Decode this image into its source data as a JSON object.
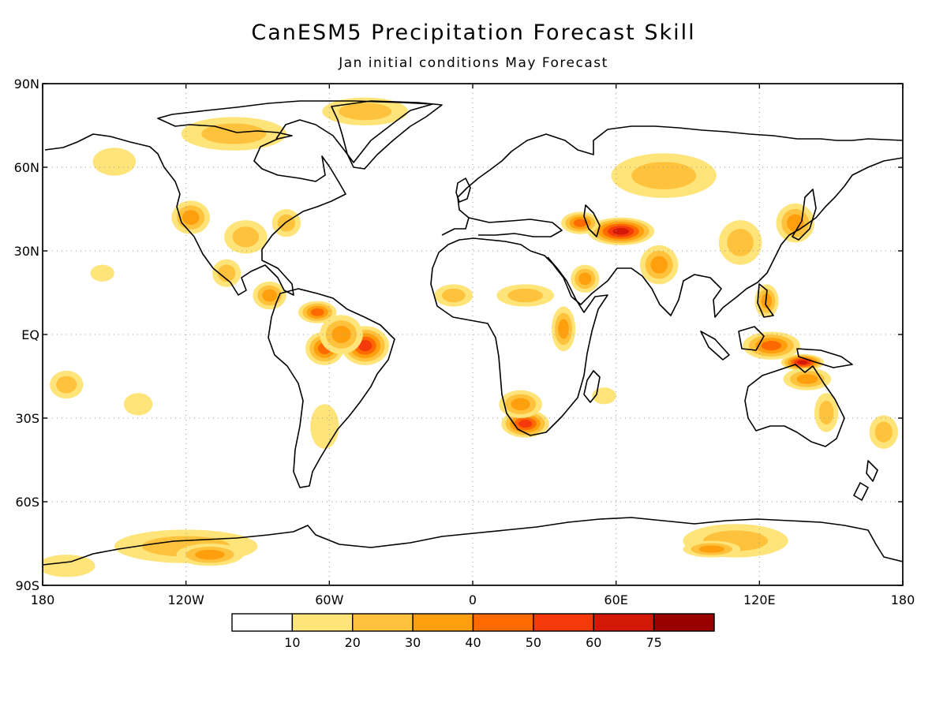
{
  "title": "CanESM5 Precipitation Forecast Skill",
  "subtitle": "Jan initial conditions   May Forecast",
  "map": {
    "lon_range": [
      -180,
      180
    ],
    "lat_range": [
      -90,
      90
    ],
    "grid": true,
    "lon_ticks": [
      {
        "value": -180,
        "label": "180"
      },
      {
        "value": -120,
        "label": "120W"
      },
      {
        "value": -60,
        "label": "60W"
      },
      {
        "value": 0,
        "label": "0"
      },
      {
        "value": 60,
        "label": "60E"
      },
      {
        "value": 120,
        "label": "120E"
      },
      {
        "value": 180,
        "label": "180"
      }
    ],
    "lat_ticks": [
      {
        "value": 90,
        "label": "90N"
      },
      {
        "value": 60,
        "label": "60N"
      },
      {
        "value": 30,
        "label": "30N"
      },
      {
        "value": 0,
        "label": "EQ"
      },
      {
        "value": -30,
        "label": "30S"
      },
      {
        "value": -60,
        "label": "60S"
      },
      {
        "value": -90,
        "label": "90S"
      }
    ]
  },
  "colorbar": {
    "colors": [
      "#ffffff",
      "#ffe47a",
      "#ffc23c",
      "#ff9f0e",
      "#ff6a00",
      "#f43a0b",
      "#d41808",
      "#9a0000"
    ],
    "labels": [
      "10",
      "20",
      "30",
      "40",
      "50",
      "60",
      "75"
    ]
  },
  "skill_regions": [
    {
      "name": "eastern-brazil",
      "lon": -45,
      "lat": -4,
      "rx": 10,
      "ry": 7,
      "level": 5
    },
    {
      "name": "amazon-west",
      "lon": -62,
      "lat": -5,
      "rx": 8,
      "ry": 6,
      "level": 4
    },
    {
      "name": "amazon-central",
      "lon": -55,
      "lat": 0,
      "rx": 9,
      "ry": 7,
      "level": 3
    },
    {
      "name": "northern-south-america",
      "lon": -65,
      "lat": 8,
      "rx": 8,
      "ry": 4,
      "level": 4
    },
    {
      "name": "central-america",
      "lon": -85,
      "lat": 14,
      "rx": 7,
      "ry": 5,
      "level": 3
    },
    {
      "name": "mexico",
      "lon": -103,
      "lat": 22,
      "rx": 6,
      "ry": 5,
      "level": 2
    },
    {
      "name": "western-usa",
      "lon": -118,
      "lat": 42,
      "rx": 8,
      "ry": 6,
      "level": 3
    },
    {
      "name": "central-usa",
      "lon": -95,
      "lat": 35,
      "rx": 9,
      "ry": 6,
      "level": 2
    },
    {
      "name": "eastern-usa",
      "lon": -78,
      "lat": 40,
      "rx": 6,
      "ry": 5,
      "level": 2
    },
    {
      "name": "canada-arctic",
      "lon": -100,
      "lat": 72,
      "rx": 22,
      "ry": 6,
      "level": 2
    },
    {
      "name": "greenland-north",
      "lon": -45,
      "lat": 80,
      "rx": 18,
      "ry": 5,
      "level": 2
    },
    {
      "name": "alaska",
      "lon": -150,
      "lat": 62,
      "rx": 9,
      "ry": 5,
      "level": 1
    },
    {
      "name": "southern-africa",
      "lon": 22,
      "lat": -32,
      "rx": 10,
      "ry": 5,
      "level": 5
    },
    {
      "name": "southern-africa-north",
      "lon": 20,
      "lat": -25,
      "rx": 9,
      "ry": 5,
      "level": 3
    },
    {
      "name": "east-africa",
      "lon": 38,
      "lat": 2,
      "rx": 5,
      "ry": 8,
      "level": 3
    },
    {
      "name": "sahel-west",
      "lon": -8,
      "lat": 14,
      "rx": 8,
      "ry": 4,
      "level": 2
    },
    {
      "name": "sahel-east",
      "lon": 22,
      "lat": 14,
      "rx": 12,
      "ry": 4,
      "level": 2
    },
    {
      "name": "arabia",
      "lon": 47,
      "lat": 20,
      "rx": 6,
      "ry": 5,
      "level": 3
    },
    {
      "name": "central-asia",
      "lon": 62,
      "lat": 37,
      "rx": 14,
      "ry": 5,
      "level": 6
    },
    {
      "name": "caspian",
      "lon": 45,
      "lat": 40,
      "rx": 8,
      "ry": 4,
      "level": 4
    },
    {
      "name": "siberia",
      "lon": 80,
      "lat": 57,
      "rx": 22,
      "ry": 8,
      "level": 2
    },
    {
      "name": "india",
      "lon": 78,
      "lat": 25,
      "rx": 8,
      "ry": 7,
      "level": 3
    },
    {
      "name": "china-east",
      "lon": 112,
      "lat": 33,
      "rx": 9,
      "ry": 8,
      "level": 2
    },
    {
      "name": "japan-korea",
      "lon": 135,
      "lat": 40,
      "rx": 8,
      "ry": 7,
      "level": 3
    },
    {
      "name": "philippines",
      "lon": 123,
      "lat": 12,
      "rx": 5,
      "ry": 6,
      "level": 3
    },
    {
      "name": "maritime-continent",
      "lon": 125,
      "lat": -4,
      "rx": 12,
      "ry": 5,
      "level": 4
    },
    {
      "name": "new-guinea-timor",
      "lon": 138,
      "lat": -10,
      "rx": 9,
      "ry": 3,
      "level": 6
    },
    {
      "name": "northern-australia",
      "lon": 140,
      "lat": -16,
      "rx": 10,
      "ry": 4,
      "level": 3
    },
    {
      "name": "eastern-australia",
      "lon": 148,
      "lat": -28,
      "rx": 5,
      "ry": 7,
      "level": 2
    },
    {
      "name": "southeast-pacific",
      "lon": -170,
      "lat": -18,
      "rx": 7,
      "ry": 5,
      "level": 2
    },
    {
      "name": "south-pacific-east",
      "lon": -140,
      "lat": -25,
      "rx": 6,
      "ry": 4,
      "level": 1
    },
    {
      "name": "central-pacific-north",
      "lon": -155,
      "lat": 22,
      "rx": 5,
      "ry": 3,
      "level": 1
    },
    {
      "name": "antarctica-pacific",
      "lon": -120,
      "lat": -76,
      "rx": 30,
      "ry": 6,
      "level": 2
    },
    {
      "name": "antarctica-pacific-core",
      "lon": -110,
      "lat": -79,
      "rx": 14,
      "ry": 4,
      "level": 3
    },
    {
      "name": "antarctica-indian",
      "lon": 110,
      "lat": -74,
      "rx": 22,
      "ry": 6,
      "level": 2
    },
    {
      "name": "antarctica-indian-core",
      "lon": 100,
      "lat": -77,
      "rx": 12,
      "ry": 3,
      "level": 3
    },
    {
      "name": "antarctica-far-west",
      "lon": -170,
      "lat": -83,
      "rx": 12,
      "ry": 4,
      "level": 1
    },
    {
      "name": "tasman",
      "lon": 172,
      "lat": -35,
      "rx": 6,
      "ry": 6,
      "level": 2
    },
    {
      "name": "indian-ocean-west",
      "lon": 55,
      "lat": -22,
      "rx": 5,
      "ry": 3,
      "level": 1
    },
    {
      "name": "argentina",
      "lon": -62,
      "lat": -33,
      "rx": 6,
      "ry": 8,
      "level": 1
    }
  ]
}
